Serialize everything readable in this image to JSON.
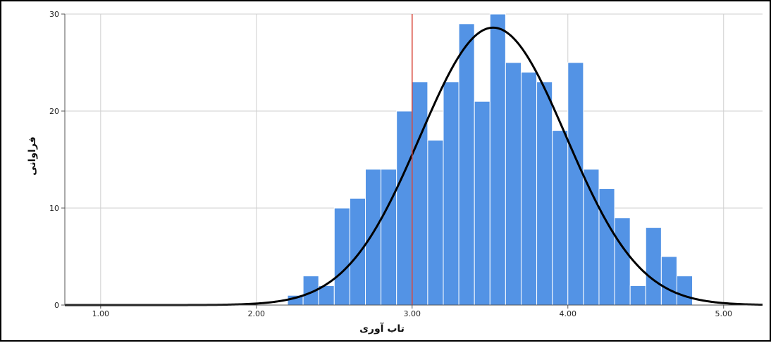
{
  "chart_data": {
    "type": "bar",
    "xlabel": "تاب آوری",
    "ylabel": "فراوانی",
    "xlim": [
      0.77,
      5.25
    ],
    "ylim": [
      0,
      30
    ],
    "x_ticks": [
      "1.00",
      "2.00",
      "3.00",
      "4.00",
      "5.00"
    ],
    "y_ticks": [
      "0",
      "10",
      "20",
      "30"
    ],
    "grid": true,
    "bin_width": 0.1,
    "bins": [
      {
        "x0": 2.2,
        "x1": 2.3,
        "count": 1
      },
      {
        "x0": 2.3,
        "x1": 2.4,
        "count": 3
      },
      {
        "x0": 2.4,
        "x1": 2.5,
        "count": 2
      },
      {
        "x0": 2.5,
        "x1": 2.6,
        "count": 10
      },
      {
        "x0": 2.6,
        "x1": 2.7,
        "count": 11
      },
      {
        "x0": 2.7,
        "x1": 2.8,
        "count": 14
      },
      {
        "x0": 2.8,
        "x1": 2.9,
        "count": 14
      },
      {
        "x0": 2.9,
        "x1": 3.0,
        "count": 20
      },
      {
        "x0": 3.0,
        "x1": 3.1,
        "count": 23
      },
      {
        "x0": 3.1,
        "x1": 3.2,
        "count": 17
      },
      {
        "x0": 3.2,
        "x1": 3.3,
        "count": 23
      },
      {
        "x0": 3.3,
        "x1": 3.4,
        "count": 29
      },
      {
        "x0": 3.4,
        "x1": 3.5,
        "count": 21
      },
      {
        "x0": 3.5,
        "x1": 3.6,
        "count": 30
      },
      {
        "x0": 3.6,
        "x1": 3.7,
        "count": 25
      },
      {
        "x0": 3.7,
        "x1": 3.8,
        "count": 24
      },
      {
        "x0": 3.8,
        "x1": 3.9,
        "count": 23
      },
      {
        "x0": 3.9,
        "x1": 4.0,
        "count": 18
      },
      {
        "x0": 4.0,
        "x1": 4.1,
        "count": 25
      },
      {
        "x0": 4.1,
        "x1": 4.2,
        "count": 14
      },
      {
        "x0": 4.2,
        "x1": 4.3,
        "count": 12
      },
      {
        "x0": 4.3,
        "x1": 4.4,
        "count": 9
      },
      {
        "x0": 4.4,
        "x1": 4.5,
        "count": 2
      },
      {
        "x0": 4.5,
        "x1": 4.6,
        "count": 8
      },
      {
        "x0": 4.6,
        "x1": 4.7,
        "count": 5
      },
      {
        "x0": 4.7,
        "x1": 4.8,
        "count": 3
      }
    ],
    "normal_curve": {
      "mean": 3.52,
      "sd": 0.47,
      "peak": 28.6
    },
    "reference_line_x": 3.0,
    "colors": {
      "bar": "#5393e5",
      "bar_edge": "#ffffff",
      "curve": "#000000",
      "reference_line": "#d9463a",
      "grid": "#cfcfcf"
    }
  }
}
